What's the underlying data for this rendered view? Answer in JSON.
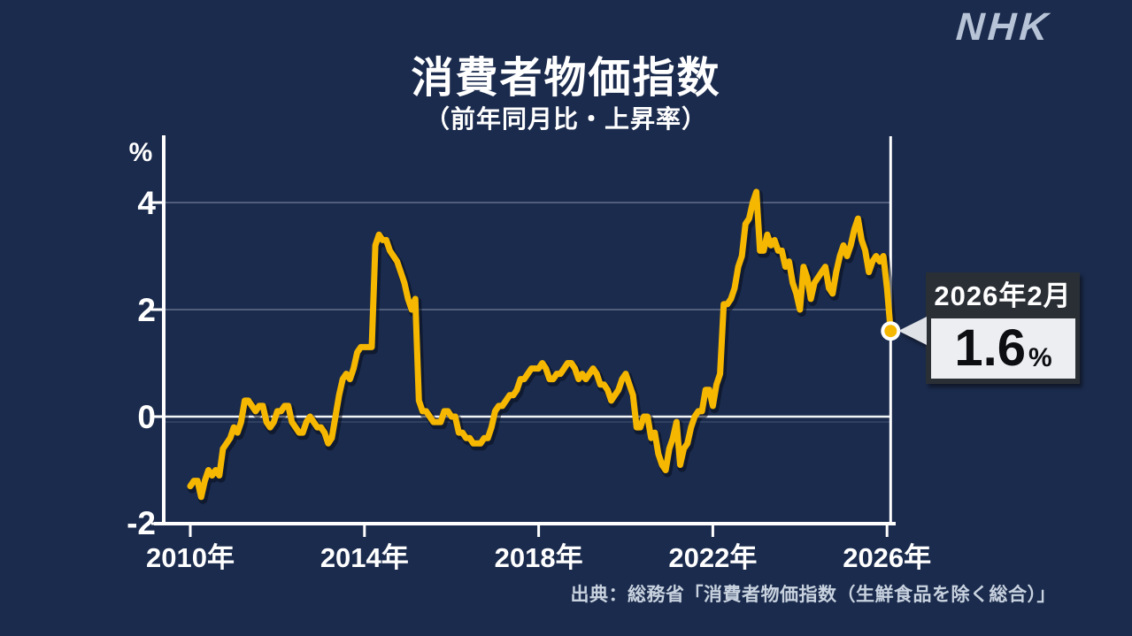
{
  "page": {
    "background": "#1b2b4d"
  },
  "logo": {
    "text": "NHK"
  },
  "header": {
    "title": "消費者物価指数",
    "subtitle": "（前年同月比・上昇率）"
  },
  "callout": {
    "date_label": "2026年2月",
    "value": "1.6",
    "unit": "%"
  },
  "source": {
    "text": "出典：総務省「消費者物価指数（生鮮食品を除く総合）」"
  },
  "chart_data": {
    "type": "line",
    "title": "消費者物価指数",
    "subtitle": "（前年同月比・上昇率）",
    "y_axis_unit": "%",
    "y_tick_labels": [
      "4",
      "2",
      "0",
      "-2"
    ],
    "y_ticks": [
      4,
      2,
      0,
      -2
    ],
    "ylim": [
      -2,
      5.2
    ],
    "grid": true,
    "x_tick_labels": [
      "2010年",
      "2014年",
      "2018年",
      "2022年",
      "2026年"
    ],
    "x_start_month": "2010-01",
    "x_end_month": "2026-02",
    "line_color": "#f6b700",
    "latest": {
      "label": "2026年2月",
      "value": 1.6
    },
    "series": [
      {
        "name": "上昇率（前年同月比）",
        "monthly_values": [
          -1.3,
          -1.2,
          -1.2,
          -1.5,
          -1.2,
          -1.0,
          -1.1,
          -1.0,
          -1.1,
          -0.6,
          -0.5,
          -0.4,
          -0.2,
          -0.3,
          -0.1,
          0.3,
          0.3,
          0.2,
          0.1,
          0.2,
          0.2,
          -0.1,
          -0.2,
          -0.1,
          0.1,
          0.1,
          0.2,
          0.2,
          -0.1,
          -0.2,
          -0.3,
          -0.3,
          -0.1,
          0.0,
          -0.1,
          -0.2,
          -0.2,
          -0.3,
          -0.5,
          -0.4,
          0.0,
          0.4,
          0.7,
          0.8,
          0.7,
          0.9,
          1.2,
          1.3,
          1.3,
          1.3,
          1.3,
          3.2,
          3.4,
          3.3,
          3.3,
          3.1,
          3.0,
          2.9,
          2.7,
          2.5,
          2.2,
          2.0,
          2.2,
          0.3,
          0.1,
          0.1,
          0.0,
          -0.1,
          -0.1,
          -0.1,
          0.1,
          0.1,
          0.0,
          0.0,
          -0.3,
          -0.3,
          -0.4,
          -0.4,
          -0.5,
          -0.5,
          -0.5,
          -0.4,
          -0.4,
          -0.2,
          0.1,
          0.2,
          0.2,
          0.3,
          0.4,
          0.4,
          0.5,
          0.7,
          0.7,
          0.8,
          0.9,
          0.9,
          0.9,
          1.0,
          0.9,
          0.7,
          0.7,
          0.8,
          0.8,
          0.9,
          1.0,
          1.0,
          0.9,
          0.7,
          0.8,
          0.7,
          0.8,
          0.9,
          0.8,
          0.6,
          0.6,
          0.5,
          0.3,
          0.4,
          0.5,
          0.7,
          0.8,
          0.6,
          0.4,
          -0.2,
          -0.2,
          0.0,
          0.0,
          -0.4,
          -0.3,
          -0.7,
          -0.9,
          -1.0,
          -0.6,
          -0.4,
          -0.1,
          -0.9,
          -0.6,
          -0.5,
          -0.2,
          0.0,
          0.1,
          0.1,
          0.5,
          0.5,
          0.2,
          0.6,
          0.8,
          2.1,
          2.1,
          2.2,
          2.4,
          2.8,
          3.0,
          3.6,
          3.7,
          4.0,
          4.2,
          3.1,
          3.1,
          3.4,
          3.2,
          3.3,
          3.1,
          3.1,
          2.8,
          2.9,
          2.5,
          2.3,
          2.0,
          2.8,
          2.6,
          2.2,
          2.5,
          2.6,
          2.7,
          2.8,
          2.4,
          2.3,
          2.7,
          3.0,
          3.2,
          3.0,
          3.2,
          3.5,
          3.7,
          3.3,
          3.1,
          2.7,
          2.9,
          3.0,
          2.9,
          3.0,
          2.4,
          1.6
        ]
      }
    ]
  }
}
